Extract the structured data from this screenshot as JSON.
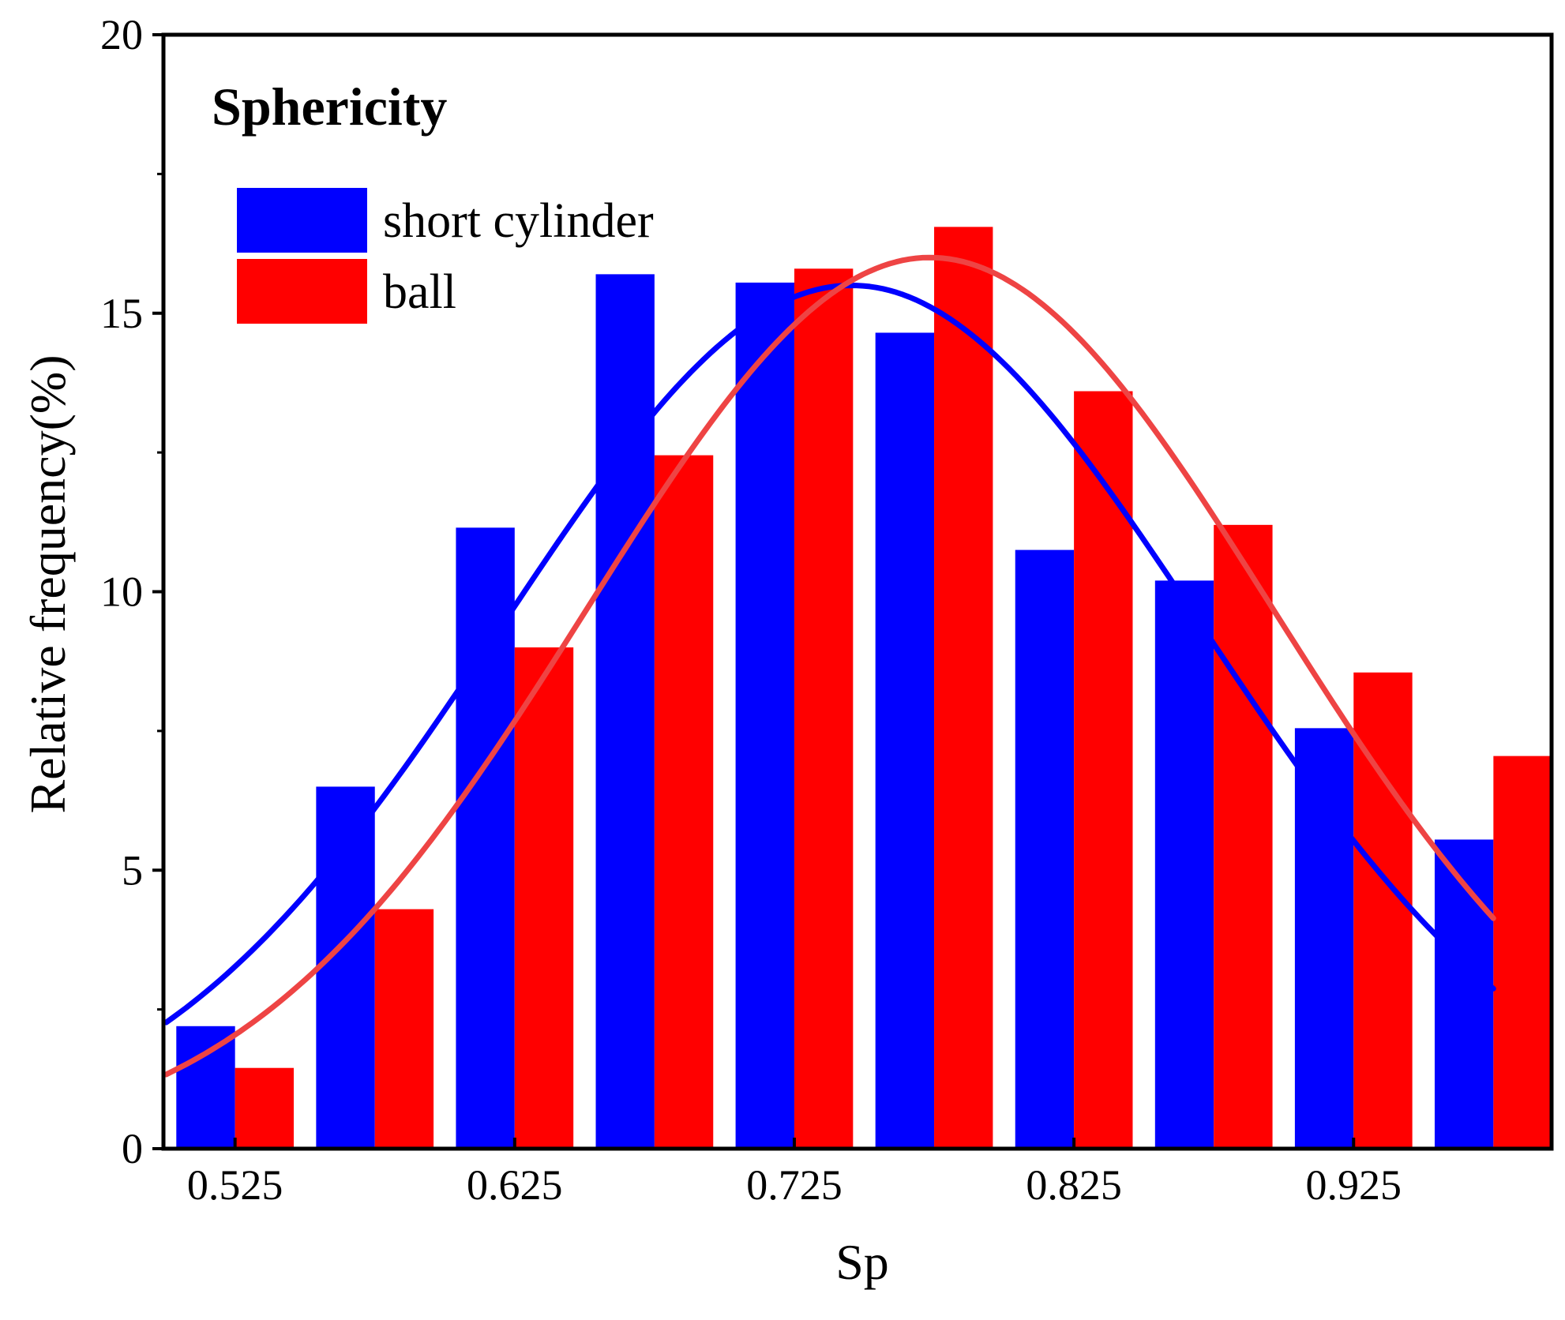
{
  "chart_data": {
    "type": "bar",
    "title": "Sphericity",
    "xlabel": "Sp",
    "ylabel": "Relative frequency(%)",
    "ylim": [
      0,
      20
    ],
    "xlim": [
      0.4994,
      0.9958
    ],
    "yticks": [
      0,
      5,
      10,
      15,
      20
    ],
    "xticks": [
      0.525,
      0.625,
      0.725,
      0.825,
      0.925
    ],
    "xtick_labels": [
      "0.525",
      "0.625",
      "0.725",
      "0.825",
      "0.925"
    ],
    "grid": false,
    "legend_position": "top-left",
    "categories": [
      0.525,
      0.575,
      0.625,
      0.675,
      0.725,
      0.775,
      0.825,
      0.875,
      0.925,
      0.975
    ],
    "series": [
      {
        "name": "short cylinder",
        "color": "#0000ff",
        "values": [
          2.2,
          6.5,
          11.15,
          15.7,
          15.55,
          14.65,
          10.75,
          10.2,
          7.55,
          5.55
        ],
        "fit": {
          "type": "gaussian",
          "amplitude": 15.5,
          "mean": 0.7455,
          "sigma": 0.125
        }
      },
      {
        "name": "ball",
        "color": "#ff0000",
        "values": [
          1.45,
          4.3,
          9.0,
          12.45,
          15.8,
          16.55,
          13.6,
          11.2,
          8.55,
          7.05
        ],
        "fit": {
          "type": "gaussian",
          "color": "#ee4444",
          "amplitude": 16.0,
          "mean": 0.7735,
          "sigma": 0.1225
        }
      }
    ]
  }
}
